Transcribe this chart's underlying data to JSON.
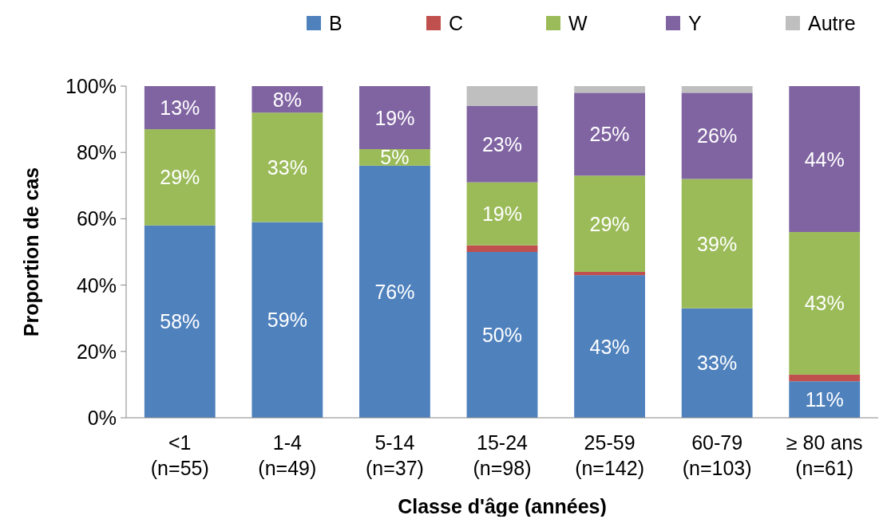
{
  "chart_data": {
    "type": "bar",
    "stacked": true,
    "xlabel": "Classe d'âge (années)",
    "ylabel": "Proportion de cas",
    "categories": [
      "<1\n(n=55)",
      "1-4\n(n=49)",
      "5-14\n(n=37)",
      "15-24\n(n=98)",
      "25-59\n(n=142)",
      "60-79\n(n=103)",
      "≥ 80 ans\n(n=61)"
    ],
    "series": [
      {
        "name": "B",
        "color": "#4f81bd",
        "values": [
          58,
          59,
          76,
          50,
          43,
          33,
          11
        ],
        "value_labels": [
          "58%",
          "59%",
          "76%",
          "50%",
          "43%",
          "33%",
          "11%"
        ]
      },
      {
        "name": "C",
        "color": "#c0504d",
        "values": [
          0,
          0,
          0,
          2,
          1,
          0,
          2
        ],
        "value_labels": [
          null,
          null,
          null,
          null,
          null,
          null,
          null
        ]
      },
      {
        "name": "W",
        "color": "#9bbb59",
        "values": [
          29,
          33,
          5,
          19,
          29,
          39,
          43
        ],
        "value_labels": [
          "29%",
          "33%",
          "5%",
          "19%",
          "29%",
          "39%",
          "43%"
        ]
      },
      {
        "name": "Y",
        "color": "#8064a2",
        "values": [
          13,
          8,
          19,
          23,
          25,
          26,
          44
        ],
        "value_labels": [
          "13%",
          "8%",
          "19%",
          "23%",
          "25%",
          "26%",
          "44%"
        ]
      },
      {
        "name": "Autre",
        "color": "#bfbfbf",
        "values": [
          0,
          0,
          0,
          6,
          2,
          2,
          0
        ],
        "value_labels": [
          null,
          null,
          null,
          null,
          null,
          null,
          null
        ]
      }
    ],
    "ylim": [
      0,
      100
    ],
    "yticks": [
      {
        "value": 0,
        "label": "0%"
      },
      {
        "value": 20,
        "label": "20%"
      },
      {
        "value": 40,
        "label": "40%"
      },
      {
        "value": 60,
        "label": "60%"
      },
      {
        "value": 80,
        "label": "80%"
      },
      {
        "value": 100,
        "label": "100%"
      }
    ],
    "grid": false,
    "legend": "top"
  }
}
